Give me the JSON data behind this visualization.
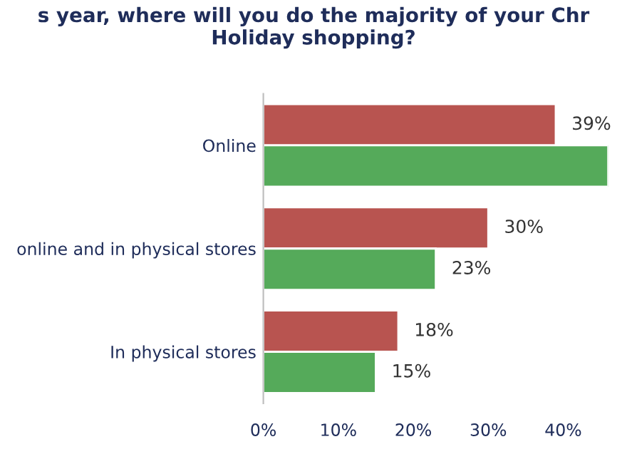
{
  "chart_data": {
    "type": "bar",
    "orientation": "horizontal",
    "title": "s year, where will you do the majority of your Chr\nHoliday shopping?",
    "categories": [
      "Online",
      "online and in physical stores",
      "In physical stores"
    ],
    "series": [
      {
        "color": "#b85450",
        "values": [
          39,
          30,
          18
        ],
        "value_labels": [
          "39%",
          "30%",
          "18%"
        ]
      },
      {
        "color": "#55aa5a",
        "values": [
          46,
          23,
          15
        ],
        "value_labels": [
          null,
          "23%",
          "15%"
        ]
      }
    ],
    "xlim": [
      0,
      46
    ],
    "xticks": [
      {
        "value": 0,
        "label": "0%"
      },
      {
        "value": 10,
        "label": "10%"
      },
      {
        "value": 20,
        "label": "20%"
      },
      {
        "value": 30,
        "label": "30%"
      },
      {
        "value": 40,
        "label": "40%"
      }
    ],
    "grid": false,
    "legend": false
  }
}
